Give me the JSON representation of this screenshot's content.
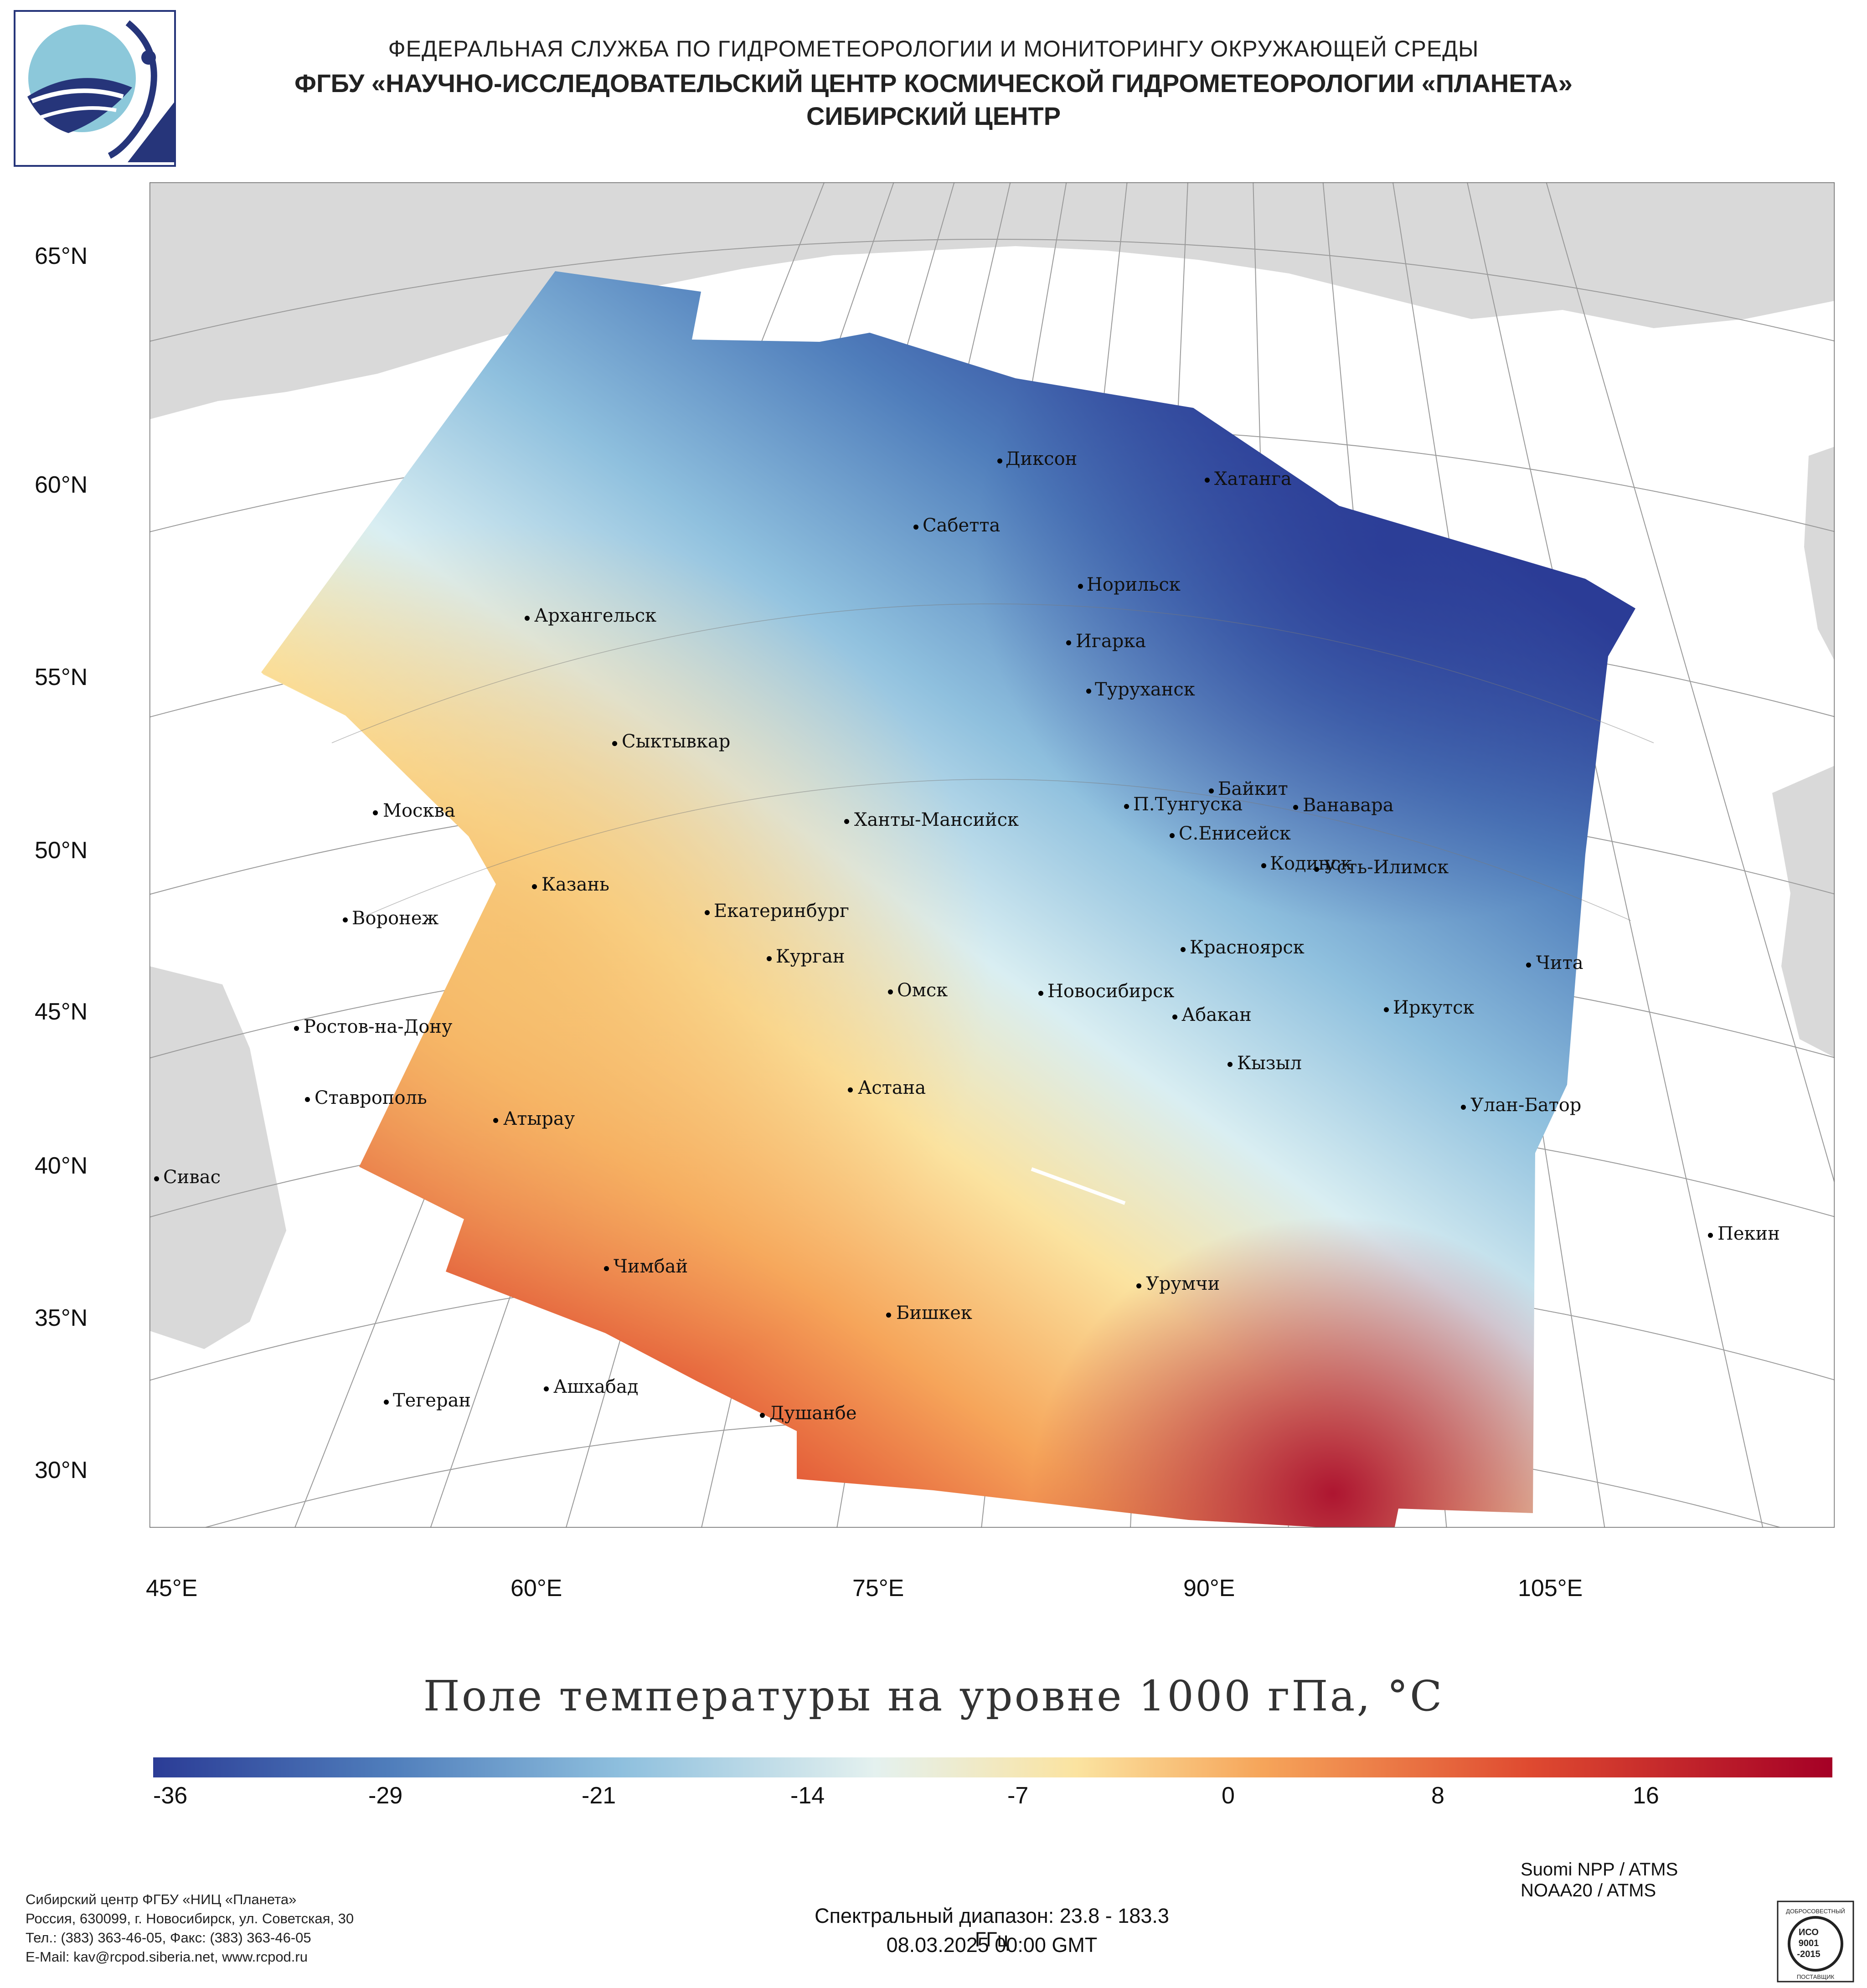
{
  "header": {
    "line1": "ФЕДЕРАЛЬНАЯ СЛУЖБА ПО ГИДРОМЕТЕОРОЛОГИИ И МОНИТОРИНГУ ОКРУЖАЮЩЕЙ СРЕДЫ",
    "line2": "ФГБУ «НАУЧНО-ИССЛЕДОВАТЕЛЬСКИЙ ЦЕНТР КОСМИЧЕСКОЙ ГИДРОМЕТЕОРОЛОГИИ «ПЛАНЕТА»",
    "line3": "СИБИРСКИЙ ЦЕНТР"
  },
  "logo": {
    "icon": "planeta-logo",
    "colors": [
      "#26357a",
      "#8cc8da"
    ]
  },
  "map": {
    "lat_labels": [
      "65°N",
      "60°N",
      "55°N",
      "50°N",
      "45°N",
      "40°N",
      "35°N",
      "30°N"
    ],
    "lon_labels": [
      "45°E",
      "60°E",
      "75°E",
      "90°E",
      "105°E"
    ],
    "cities": [
      {
        "name": "Диксон"
      },
      {
        "name": "Хатанга"
      },
      {
        "name": "Сабетта"
      },
      {
        "name": "Норильск"
      },
      {
        "name": "Архангельск"
      },
      {
        "name": "Игарка"
      },
      {
        "name": "Туруханск"
      },
      {
        "name": "Сыктывкар"
      },
      {
        "name": "Байкит"
      },
      {
        "name": "П.Тунгуска"
      },
      {
        "name": "Ванавара"
      },
      {
        "name": "Москва"
      },
      {
        "name": "Ханты-Мансийск"
      },
      {
        "name": "С.Енисейск"
      },
      {
        "name": "Кодинск"
      },
      {
        "name": "Усть-Илимск"
      },
      {
        "name": "Казань"
      },
      {
        "name": "Воронеж"
      },
      {
        "name": "Екатеринбург"
      },
      {
        "name": "Красноярск"
      },
      {
        "name": "Курган"
      },
      {
        "name": "Чита"
      },
      {
        "name": "Омск"
      },
      {
        "name": "Новосибирск"
      },
      {
        "name": "Иркутск"
      },
      {
        "name": "Ростов-на-Дону"
      },
      {
        "name": "Абакан"
      },
      {
        "name": "Кызыл"
      },
      {
        "name": "Астана"
      },
      {
        "name": "Ставрополь"
      },
      {
        "name": "Улан-Батор"
      },
      {
        "name": "Атырау"
      },
      {
        "name": "Сивас"
      },
      {
        "name": "Пекин"
      },
      {
        "name": "Чимбай"
      },
      {
        "name": "Урумчи"
      },
      {
        "name": "Бишкек"
      },
      {
        "name": "Ашхабад"
      },
      {
        "name": "Тегеран"
      },
      {
        "name": "Душанбе"
      }
    ]
  },
  "title": "Поле температуры на уровне 1000 гПа, °C",
  "colorbar": {
    "labels": [
      "-36",
      "-29",
      "-21",
      "-14",
      "-7",
      "0",
      "8",
      "16"
    ],
    "colors": [
      "#2b3c96",
      "#4f7dbb",
      "#8fc0de",
      "#e4f1ef",
      "#fbe3a0",
      "#f6a55a",
      "#df4a30",
      "#a50026"
    ]
  },
  "footer": {
    "org": "Сибирский центр ФГБУ «НИЦ «Планета»",
    "address": "Россия, 630099, г. Новосибирск, ул. Советская, 30",
    "phones": "Тел.: (383) 363-46-05, Факс: (383) 363-46-05",
    "email": "E-Mail: kav@rcpod.siberia.net, www.rcpod.ru",
    "spectral": "Спектральный диапазон: 23.8 - 183.3 ГГц",
    "datetime": "08.03.2025 00:00 GMT",
    "sensor1": "Suomi NPP / ATMS",
    "sensor2": "NOAA20 / ATMS"
  },
  "iso_badge": {
    "top": "ДОБРОСОВЕСТНЫЙ",
    "l1": "ИСО",
    "l2": "9001",
    "l3": "-2015",
    "bottom": "ПОСТАВЩИК"
  }
}
